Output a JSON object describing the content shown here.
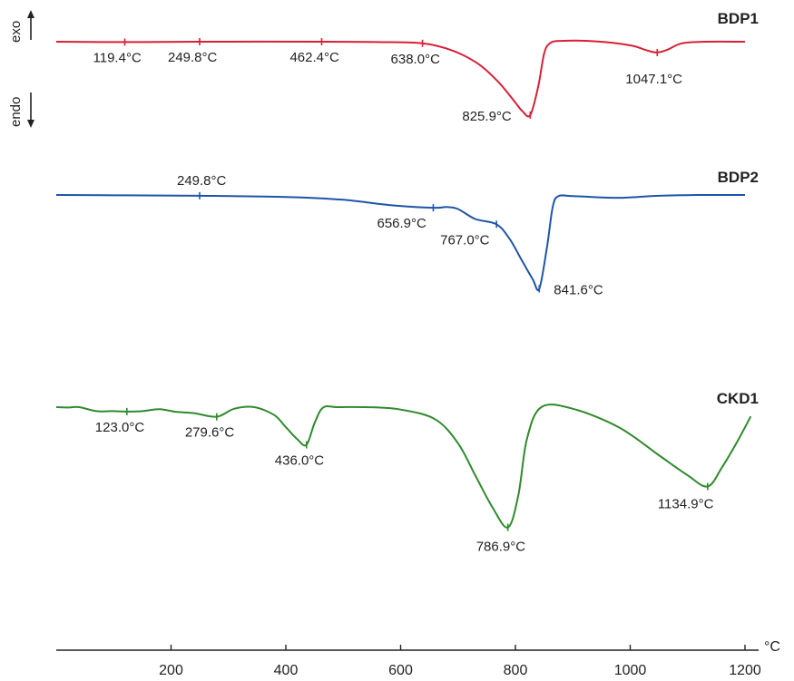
{
  "chart_data": {
    "type": "line",
    "title": "",
    "xlabel": "",
    "ylabel": "",
    "x_unit": "°C",
    "xlim": [
      0,
      1200
    ],
    "x_ticks": [
      200,
      400,
      600,
      800,
      1000,
      1200
    ],
    "x_tick_labels": [
      "200",
      "400",
      "600",
      "800",
      "1000",
      "1200"
    ],
    "y_axis": "none (curves vertically offset)",
    "direction": {
      "up": "exo",
      "down": "endo"
    },
    "grid": false,
    "legend": "series names at right end of each curve",
    "series": [
      {
        "name": "BDP1",
        "color": "#d62037",
        "x": [
          0,
          119.4,
          249.8,
          462.4,
          560,
          638.0,
          690,
          735,
          770,
          800,
          812,
          825.9,
          840,
          850,
          860,
          880,
          940,
          1000,
          1030,
          1047.1,
          1065,
          1090,
          1130,
          1200
        ],
        "y": [
          0,
          -0.1,
          0,
          0,
          -0.1,
          -0.4,
          -2.2,
          -5.5,
          -10,
          -15.2,
          -17.3,
          -18.3,
          -11,
          -3,
          -0.4,
          0.2,
          0.1,
          -0.9,
          -2.2,
          -2.7,
          -2.0,
          -0.4,
          0,
          0
        ],
        "peaks": [
          {
            "x": 119.4,
            "label": "119.4°C"
          },
          {
            "x": 249.8,
            "label": "249.8°C"
          },
          {
            "x": 462.4,
            "label": "462.4°C"
          },
          {
            "x": 638.0,
            "label": "638.0°C"
          },
          {
            "x": 825.9,
            "label": "825.9°C"
          },
          {
            "x": 1047.1,
            "label": "1047.1°C"
          }
        ]
      },
      {
        "name": "BDP2",
        "color": "#1e55a6",
        "x": [
          0,
          120,
          249.8,
          400,
          500,
          580,
          656.9,
          680,
          700,
          730,
          767.0,
          790,
          810,
          830,
          841.6,
          855,
          865,
          875,
          900,
          950,
          985.8,
          1050,
          1120,
          1200
        ],
        "y": [
          0,
          -0.1,
          -0.2,
          -0.5,
          -1.2,
          -2.5,
          -3.2,
          -3.0,
          -3.5,
          -6,
          -7.3,
          -11,
          -16,
          -21,
          -23.4,
          -13,
          -3,
          -0.3,
          -0.3,
          -0.6,
          -0.7,
          -0.2,
          0,
          0
        ],
        "peaks": [
          {
            "x": 249.8,
            "label": "249.8°C"
          },
          {
            "x": 656.9,
            "label": "656.9°C"
          },
          {
            "x": 767.0,
            "label": "767.0°C"
          },
          {
            "x": 841.6,
            "label": "841.6°C"
          }
        ]
      },
      {
        "name": "CKD1",
        "color": "#2f8a2e",
        "x": [
          0,
          20,
          40,
          70,
          100,
          123.0,
          150,
          180,
          210,
          240,
          279.6,
          310,
          345,
          380,
          400,
          420,
          436.0,
          450,
          465,
          490,
          540,
          600,
          660,
          700,
          730,
          760,
          786.9,
          805,
          820,
          845,
          900,
          980,
          1050,
          1100,
          1134.9,
          1160,
          1185,
          1210
        ],
        "y": [
          0,
          -0.1,
          0,
          -1.0,
          -1.0,
          -1.1,
          -1.0,
          -0.5,
          -1.2,
          -1.5,
          -2.4,
          -0.4,
          0,
          -2,
          -5,
          -8,
          -9.4,
          -4,
          -0.1,
          0,
          0,
          -0.6,
          -3,
          -9,
          -17,
          -25,
          -30.0,
          -22,
          -8,
          0,
          -0.4,
          -5,
          -12,
          -17,
          -19.8,
          -15,
          -9,
          -2.3
        ],
        "peaks": [
          {
            "x": 123.0,
            "label": "123.0°C"
          },
          {
            "x": 279.6,
            "label": "279.6°C"
          },
          {
            "x": 436.0,
            "label": "436.0°C"
          },
          {
            "x": 786.9,
            "label": "786.9°C"
          },
          {
            "x": 1134.9,
            "label": "1134.9°C"
          }
        ]
      }
    ]
  }
}
